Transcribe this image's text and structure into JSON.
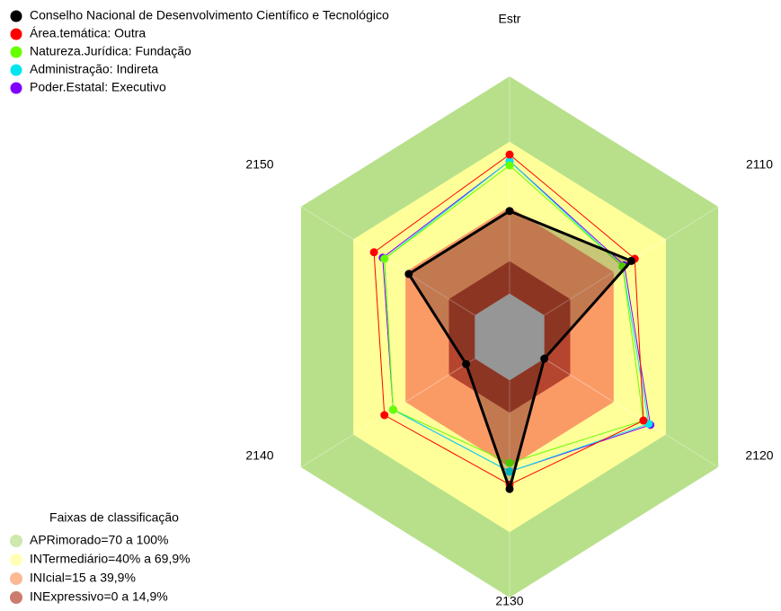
{
  "chart_data": {
    "type": "radar",
    "categories": [
      "Estr",
      "2110",
      "2120",
      "2130",
      "2140",
      "2150"
    ],
    "ylim": [
      -20,
      100
    ],
    "series": [
      {
        "name": "Conselho Nacional de Desenvolvimento Científico e Tecnológico",
        "color": "#000000",
        "values": [
          38,
          50,
          0,
          50,
          5,
          38
        ]
      },
      {
        "name": "Área.temática: Outra",
        "color": "#ff0000",
        "values": [
          64,
          52,
          57,
          48,
          52,
          58
        ]
      },
      {
        "name": "Natureza.Jurídica: Fundação",
        "color": "#66ff00",
        "values": [
          59,
          45,
          57,
          38,
          47,
          52
        ]
      },
      {
        "name": "Administração: Indireta",
        "color": "#00e5ee",
        "values": [
          61,
          45,
          60,
          42,
          47,
          52
        ]
      },
      {
        "name": "Poder.Estatal: Executivo",
        "color": "#7f00ff",
        "values": [
          61,
          46,
          61,
          42,
          47,
          53
        ]
      }
    ],
    "bands_title": "Faixas de classificação",
    "bands": [
      {
        "label": "APRimorado=70 a 100%",
        "from": 70,
        "to": 100,
        "color": "#b8e08a"
      },
      {
        "label": "INTermediário=40% a 69,9%",
        "from": 40,
        "to": 69.9,
        "color": "#ffff99"
      },
      {
        "label": "INIcial=15 a 39,9%",
        "from": 15,
        "to": 39.9,
        "color": "#fa9b66"
      },
      {
        "label": "INExpressivo=0 a 14,9%",
        "from": 0,
        "to": 14.9,
        "color": "#b5452e"
      }
    ],
    "inner_color": "#c0c0c0"
  }
}
